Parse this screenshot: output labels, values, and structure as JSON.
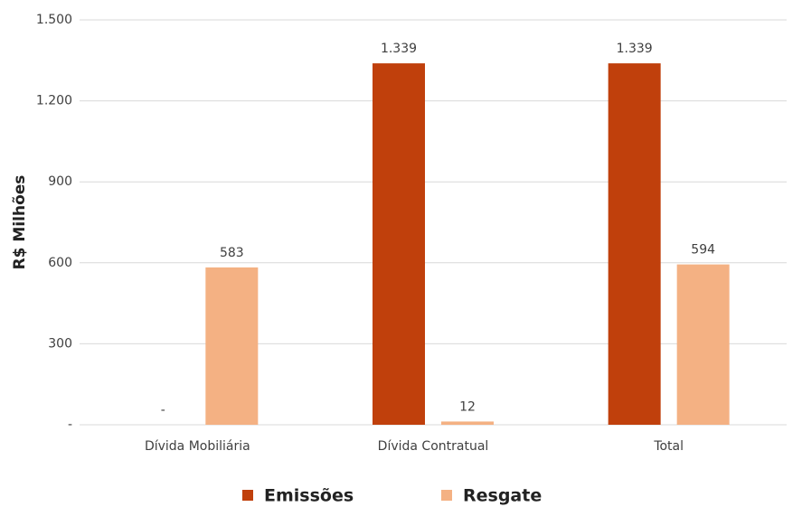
{
  "chart_data": {
    "type": "bar",
    "y_label": "R$ Milhões",
    "categories": [
      "Dívida Mobiliária",
      "Dívida Contratual",
      "Total"
    ],
    "series": [
      {
        "name": "Emissões",
        "color": "#c0400c",
        "values": [
          0,
          1339,
          1339
        ],
        "value_labels": [
          "-",
          "1.339",
          "1.339"
        ]
      },
      {
        "name": "Resgate",
        "color": "#f4b183",
        "values": [
          583,
          12,
          594
        ],
        "value_labels": [
          "583",
          "12",
          "594"
        ]
      }
    ],
    "ylim": [
      0,
      1500
    ],
    "yticks": [
      {
        "value": 0,
        "label": "-"
      },
      300,
      600,
      900,
      {
        "value": 1200,
        "label": "1.200"
      },
      {
        "value": 1500,
        "label": "1.500"
      }
    ],
    "grid": true,
    "legend": "bottom"
  }
}
